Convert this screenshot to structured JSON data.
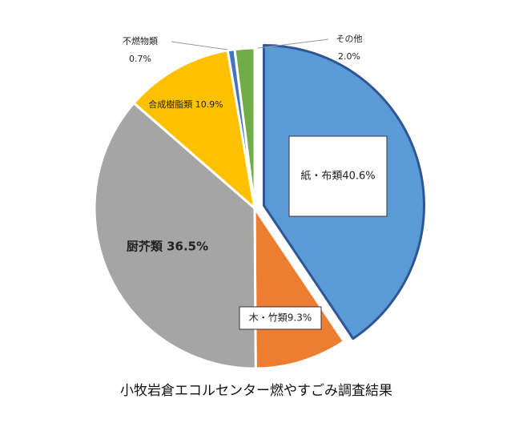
{
  "chart_data": {
    "type": "pie",
    "title": "小牧岩倉エコルセンター燃やすごみ調査結果",
    "start_angle_deg": 0,
    "direction": "clockwise",
    "slices": [
      {
        "name": "紙・布類",
        "value": 40.6,
        "value_label": "40.6%",
        "color": "#5B9BD5",
        "border": "#2F5597",
        "exploded": true
      },
      {
        "name": "木・竹類",
        "value": 9.3,
        "value_label": "9.3%",
        "color": "#ED7D31",
        "border": "#ffffff",
        "exploded": false
      },
      {
        "name": "厨芥類",
        "value": 36.5,
        "value_label": "36.5%",
        "color": "#A5A5A5",
        "border": "#ffffff",
        "exploded": false
      },
      {
        "name": "合成樹脂類",
        "value": 10.9,
        "value_label": "10.9%",
        "color": "#FFC000",
        "border": "#ffffff",
        "exploded": false
      },
      {
        "name": "不燃物類",
        "value": 0.7,
        "value_label": "0.7%",
        "color": "#4472C4",
        "border": "#ffffff",
        "exploded": false
      },
      {
        "name": "その他",
        "value": 2.0,
        "value_label": "2.0%",
        "color": "#70AD47",
        "border": "#ffffff",
        "exploded": false
      }
    ]
  }
}
